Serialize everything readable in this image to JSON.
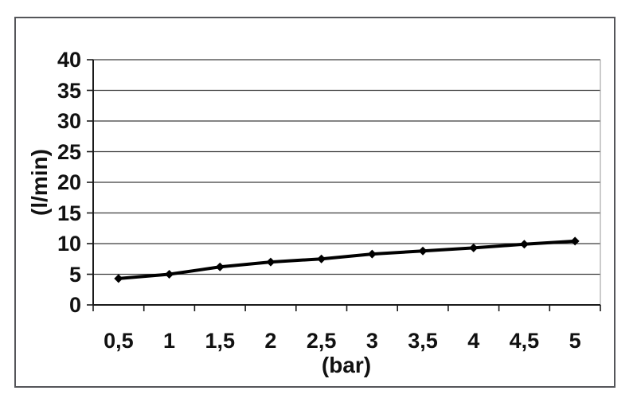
{
  "chart_data": {
    "type": "line",
    "title": "",
    "xlabel": "(bar)",
    "ylabel": "(l/min)",
    "categories": [
      0.5,
      1,
      1.5,
      2,
      2.5,
      3,
      3.5,
      4,
      4.5,
      5
    ],
    "category_labels": [
      "0,5",
      "1",
      "1,5",
      "2",
      "2,5",
      "3",
      "3,5",
      "4",
      "4,5",
      "5"
    ],
    "values": [
      4.3,
      5.0,
      6.2,
      7.0,
      7.5,
      8.3,
      8.8,
      9.3,
      9.9,
      10.4
    ],
    "yticks": [
      0,
      5,
      10,
      15,
      20,
      25,
      30,
      35,
      40
    ],
    "ytick_labels": [
      "0",
      "5",
      "10",
      "15",
      "20",
      "25",
      "30",
      "35",
      "40"
    ],
    "ylim": [
      0,
      40
    ],
    "grid": "horizontal",
    "legend": "none",
    "marker": "diamond",
    "colors": {
      "line": "#000000",
      "marker": "#000000",
      "grid": "#3c3c3c",
      "axis": "#1a1a1a",
      "plot_right_border": "#a8a8a8",
      "frame_border": "#55565a",
      "text": "#111111",
      "background": "#ffffff"
    }
  }
}
